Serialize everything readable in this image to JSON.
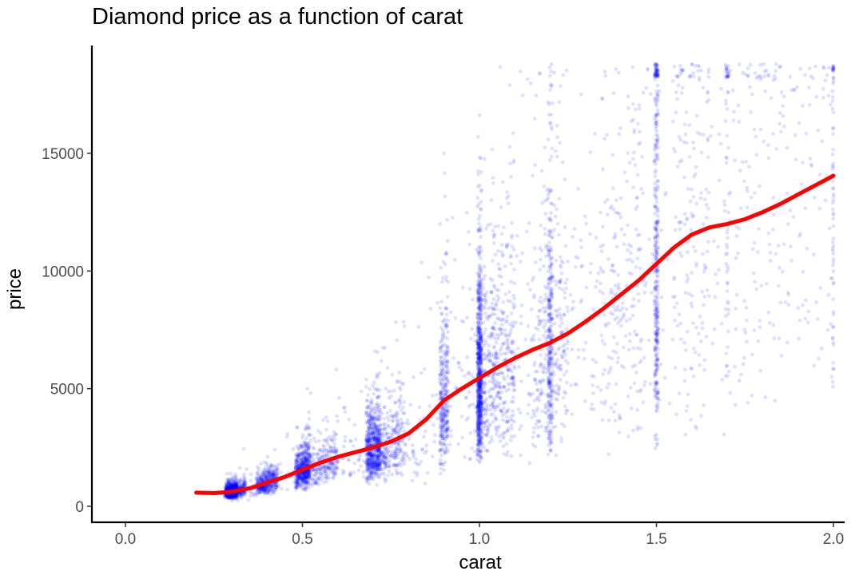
{
  "chart_data": {
    "type": "scatter",
    "title": "Diamond price as a function of carat",
    "xlabel": "carat",
    "ylabel": "price",
    "xlim": [
      -0.1,
      2.02
    ],
    "ylim": [
      -600,
      19500
    ],
    "x_ticks": [
      0.0,
      0.5,
      1.0,
      1.5,
      2.0
    ],
    "x_tick_labels": [
      "0.0",
      "0.5",
      "1.0",
      "1.5",
      "2.0"
    ],
    "y_ticks": [
      0,
      5000,
      10000,
      15000
    ],
    "y_tick_labels": [
      "0",
      "5000",
      "10000",
      "15000"
    ],
    "grid": false,
    "legend": "none",
    "point_color": "#0000ff",
    "point_alpha": 0.12,
    "smooth_color": "#ff0000",
    "series": [
      {
        "kind": "points",
        "description_of_distribution": [
          {
            "carat": 0.25,
            "price_min": 350,
            "price_max": 900
          },
          {
            "carat": 0.3,
            "price_min": 400,
            "price_max": 1500
          },
          {
            "carat": 0.4,
            "price_min": 600,
            "price_max": 1800
          },
          {
            "carat": 0.5,
            "price_min": 800,
            "price_max": 3500
          },
          {
            "carat": 0.6,
            "price_min": 1000,
            "price_max": 4000
          },
          {
            "carat": 0.7,
            "price_min": 1000,
            "price_max": 5500
          },
          {
            "carat": 0.8,
            "price_min": 1300,
            "price_max": 5000
          },
          {
            "carat": 0.9,
            "price_min": 1600,
            "price_max": 9500
          },
          {
            "carat": 1.0,
            "price_min": 2000,
            "price_max": 16500
          },
          {
            "carat": 1.1,
            "price_min": 2500,
            "price_max": 17000
          },
          {
            "carat": 1.2,
            "price_min": 2500,
            "price_max": 18000
          },
          {
            "carat": 1.3,
            "price_min": 3000,
            "price_max": 18000
          },
          {
            "carat": 1.5,
            "price_min": 3000,
            "price_max": 18800
          },
          {
            "carat": 1.7,
            "price_min": 4500,
            "price_max": 18800
          },
          {
            "carat": 2.0,
            "price_min": 5000,
            "price_max": 18800
          }
        ]
      },
      {
        "kind": "smooth",
        "x": [
          0.2,
          0.25,
          0.3,
          0.35,
          0.4,
          0.45,
          0.5,
          0.55,
          0.6,
          0.65,
          0.7,
          0.75,
          0.8,
          0.85,
          0.9,
          0.95,
          1.0,
          1.05,
          1.1,
          1.15,
          1.2,
          1.25,
          1.3,
          1.35,
          1.4,
          1.45,
          1.5,
          1.55,
          1.6,
          1.65,
          1.7,
          1.75,
          1.8,
          1.85,
          1.9,
          1.95,
          2.0
        ],
        "y": [
          580,
          560,
          620,
          760,
          1000,
          1250,
          1550,
          1850,
          2100,
          2300,
          2500,
          2750,
          3100,
          3700,
          4500,
          5000,
          5450,
          5900,
          6300,
          6650,
          6950,
          7350,
          7850,
          8400,
          9000,
          9600,
          10300,
          11000,
          11550,
          11850,
          12000,
          12200,
          12500,
          12850,
          13250,
          13650,
          14050
        ]
      }
    ]
  }
}
